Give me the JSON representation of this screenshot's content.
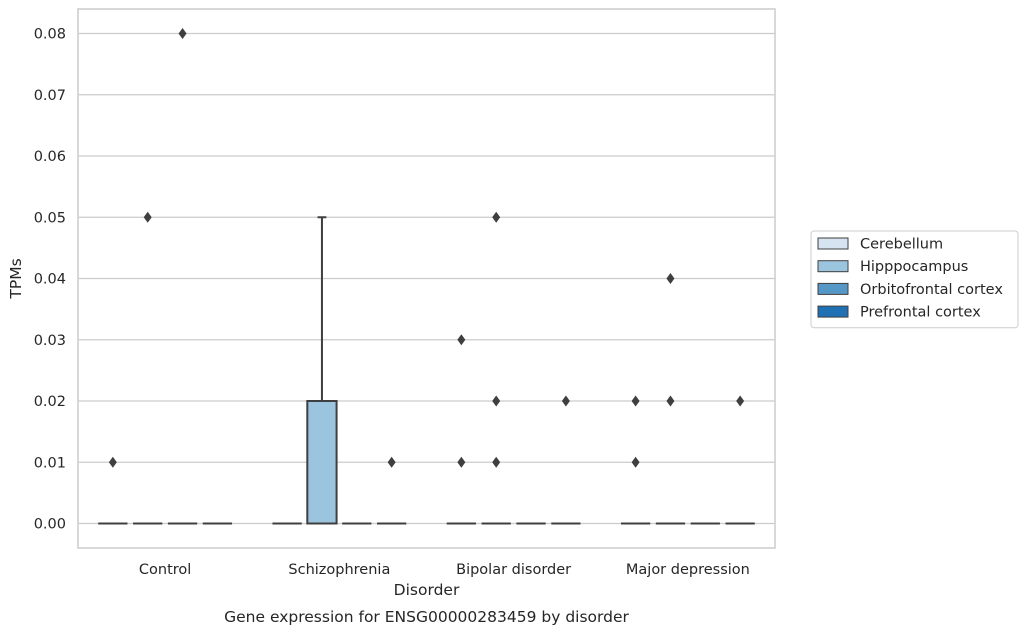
{
  "chart_data": {
    "type": "box",
    "title": "",
    "caption": "Gene expression for ENSG00000283459 by disorder",
    "xlabel": "Disorder",
    "ylabel": "TPMs",
    "ylim": [
      -0.004,
      0.084
    ],
    "yticks": [
      "0.00",
      "0.01",
      "0.02",
      "0.03",
      "0.04",
      "0.05",
      "0.06",
      "0.07",
      "0.08"
    ],
    "ytick_values": [
      0,
      0.01,
      0.02,
      0.03,
      0.04,
      0.05,
      0.06,
      0.07,
      0.08
    ],
    "grid": true,
    "legend_position": "right",
    "categories": [
      "Control",
      "Schizophrenia",
      "Bipolar disorder",
      "Major depression"
    ],
    "series": [
      {
        "name": "Cerebellum",
        "color": "#d6e4f2",
        "boxes": [
          {
            "q1": 0,
            "median": 0,
            "q3": 0,
            "whislo": 0,
            "whishi": 0,
            "fliers": [
              0.01
            ]
          },
          {
            "q1": 0,
            "median": 0,
            "q3": 0,
            "whislo": 0,
            "whishi": 0,
            "fliers": []
          },
          {
            "q1": 0,
            "median": 0,
            "q3": 0,
            "whislo": 0,
            "whishi": 0,
            "fliers": [
              0.01,
              0.03
            ]
          },
          {
            "q1": 0,
            "median": 0,
            "q3": 0,
            "whislo": 0,
            "whishi": 0,
            "fliers": [
              0.01,
              0.02
            ]
          }
        ]
      },
      {
        "name": "Hipppocampus",
        "color": "#9bc4de",
        "boxes": [
          {
            "q1": 0,
            "median": 0,
            "q3": 0,
            "whislo": 0,
            "whishi": 0,
            "fliers": [
              0.05
            ]
          },
          {
            "q1": 0,
            "median": 0,
            "q3": 0.02,
            "whislo": 0,
            "whishi": 0.05,
            "fliers": []
          },
          {
            "q1": 0,
            "median": 0,
            "q3": 0,
            "whislo": 0,
            "whishi": 0,
            "fliers": [
              0.01,
              0.02,
              0.05
            ]
          },
          {
            "q1": 0,
            "median": 0,
            "q3": 0,
            "whislo": 0,
            "whishi": 0,
            "fliers": [
              0.02,
              0.04
            ]
          }
        ]
      },
      {
        "name": "Orbitofrontal cortex",
        "color": "#5597c6",
        "boxes": [
          {
            "q1": 0,
            "median": 0,
            "q3": 0,
            "whislo": 0,
            "whishi": 0,
            "fliers": [
              0.08
            ]
          },
          {
            "q1": 0,
            "median": 0,
            "q3": 0,
            "whislo": 0,
            "whishi": 0,
            "fliers": []
          },
          {
            "q1": 0,
            "median": 0,
            "q3": 0,
            "whislo": 0,
            "whishi": 0,
            "fliers": []
          },
          {
            "q1": 0,
            "median": 0,
            "q3": 0,
            "whislo": 0,
            "whishi": 0,
            "fliers": []
          }
        ]
      },
      {
        "name": "Prefrontal cortex",
        "color": "#2070b4",
        "boxes": [
          {
            "q1": 0,
            "median": 0,
            "q3": 0,
            "whislo": 0,
            "whishi": 0,
            "fliers": []
          },
          {
            "q1": 0,
            "median": 0,
            "q3": 0,
            "whislo": 0,
            "whishi": 0,
            "fliers": [
              0.01
            ]
          },
          {
            "q1": 0,
            "median": 0,
            "q3": 0,
            "whislo": 0,
            "whishi": 0,
            "fliers": [
              0.02
            ]
          },
          {
            "q1": 0,
            "median": 0,
            "q3": 0,
            "whislo": 0,
            "whishi": 0,
            "fliers": [
              0.02
            ]
          }
        ]
      }
    ]
  }
}
